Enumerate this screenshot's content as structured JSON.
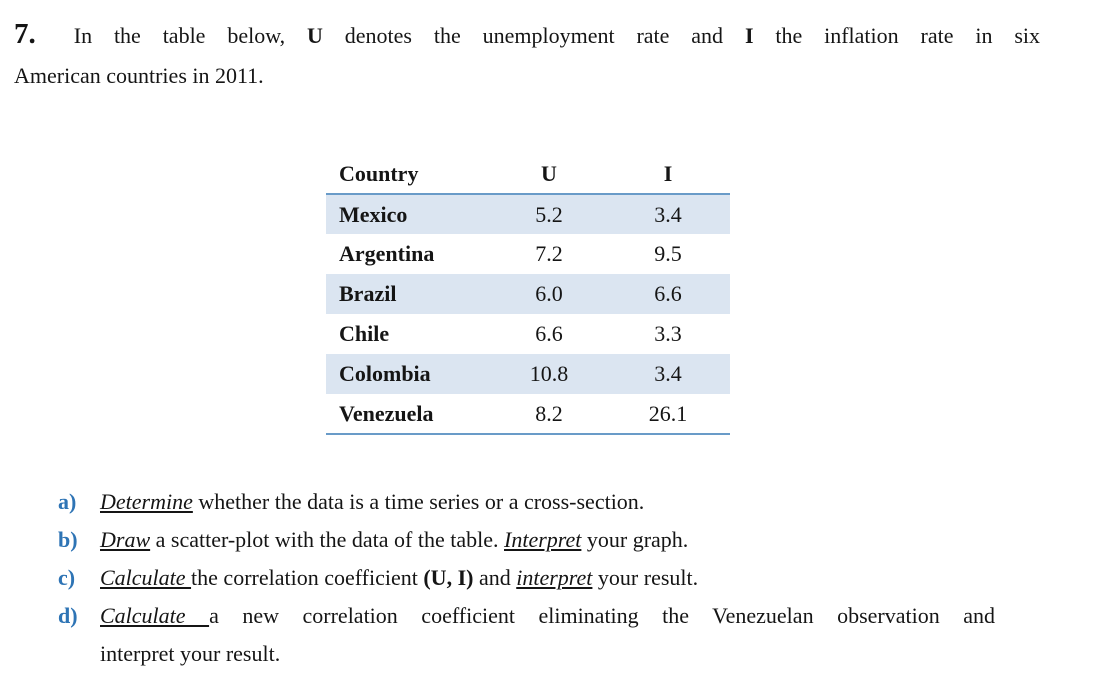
{
  "colors": {
    "accent_blue": "#2E74B5",
    "table_rule_blue": "#699BC8",
    "row_shade_blue": "#DBE5F1",
    "text": "#151515",
    "background": "#FFFFFF"
  },
  "question": {
    "number": "7.",
    "intro": {
      "t1": "In the table below, ",
      "b1": "U",
      "t2": " denotes the unemployment rate and ",
      "b2": "I",
      "t3": " the inflation rate in six",
      "t4": "American countries in 2011."
    }
  },
  "table": {
    "headers": {
      "country": "Country",
      "u": "U",
      "i": "I"
    },
    "rows": [
      {
        "country": "Mexico",
        "u": "5.2",
        "i": "3.4"
      },
      {
        "country": "Argentina",
        "u": "7.2",
        "i": "9.5"
      },
      {
        "country": "Brazil",
        "u": "6.0",
        "i": "6.6"
      },
      {
        "country": "Chile",
        "u": "6.6",
        "i": "3.3"
      },
      {
        "country": "Colombia",
        "u": "10.8",
        "i": "3.4"
      },
      {
        "country": "Venezuela",
        "u": "8.2",
        "i": "26.1"
      }
    ]
  },
  "subquestions": {
    "a": {
      "letter": "a)",
      "iu1": "Determine",
      "t1": " whether the data is a time series or a cross-section."
    },
    "b": {
      "letter": "b)",
      "iu1": "Draw",
      "t1": " a scatter-plot with the data of the table. ",
      "iu2": "Interpret",
      "t2": " your graph."
    },
    "c": {
      "letter": "c)",
      "iu1": "Calculate ",
      "t1": "the correlation coefficient ",
      "b1": "(U, I)",
      "t2": " and ",
      "iu2": "interpret",
      "t3": " your result."
    },
    "d": {
      "letter": "d)",
      "iu1": "Calculate ",
      "t1": "a new correlation coefficient eliminating the Venezuelan observation and",
      "t2": "interpret your result."
    }
  }
}
